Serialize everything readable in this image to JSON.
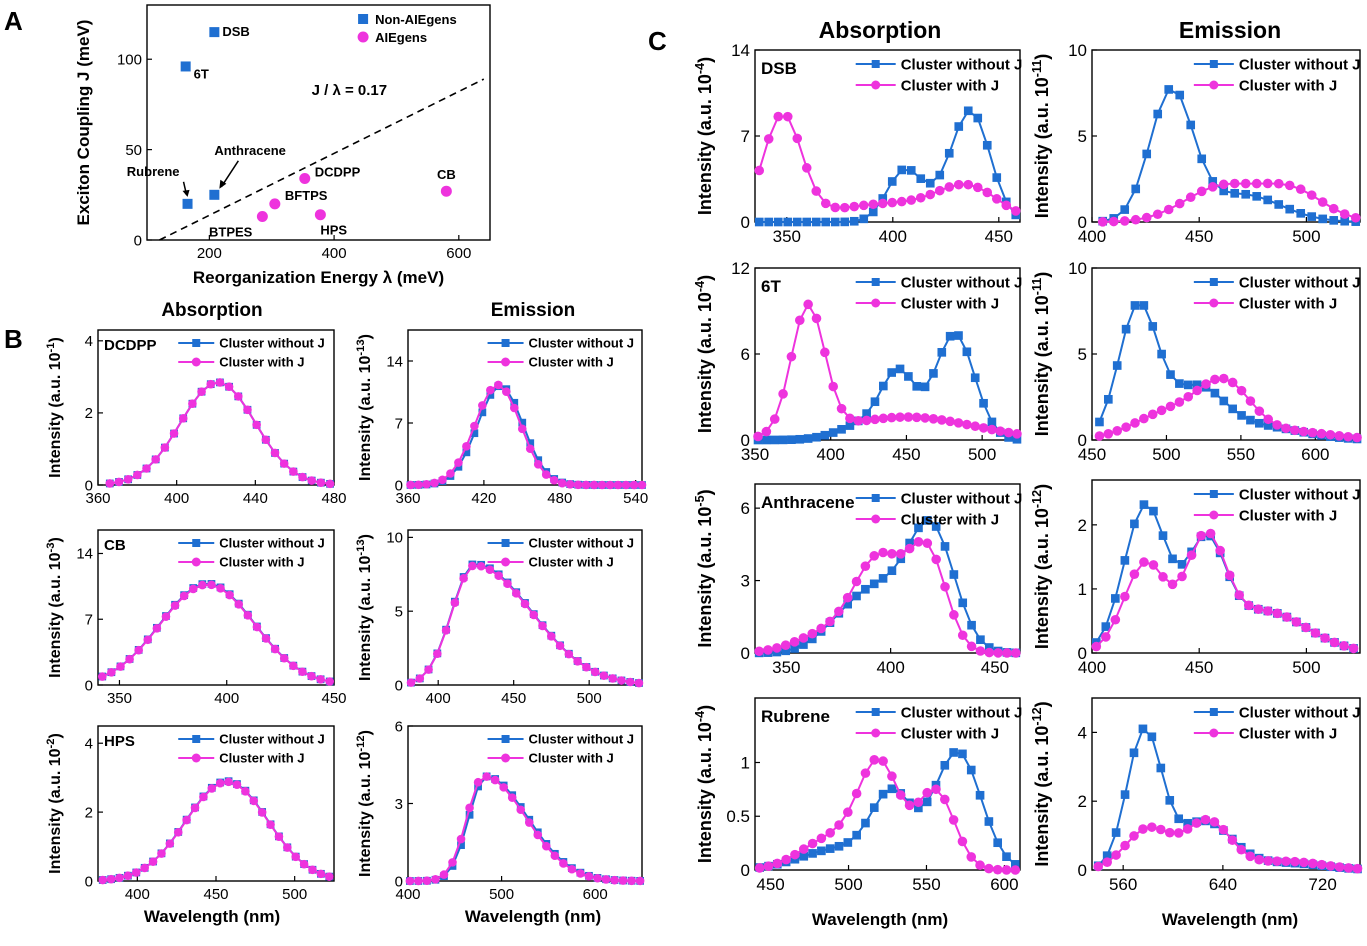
{
  "colors": {
    "without": "#1f6fd1",
    "with": "#ee33dd",
    "axis": "#000000"
  },
  "panel_letters": [
    "A",
    "B",
    "C"
  ],
  "section_titles": {
    "absorption": "Absorption",
    "emission": "Emission"
  },
  "wavelength_label": "Wavelength (nm)",
  "legend": {
    "without": "Cluster without J",
    "with": "Cluster with J"
  },
  "panel_a": {
    "xlabel": "Reorganization Energy λ (meV)",
    "ylabel": "Exciton Coupling J (meV)",
    "legend": [
      "Non-AIEgens",
      "AIEgens"
    ],
    "ratio_label": "J / λ = 0.17"
  },
  "chart_data": [
    {
      "id": "A",
      "type": "scatter",
      "xlim": [
        100,
        650
      ],
      "ylim": [
        0,
        130
      ],
      "xticks": [
        200,
        400,
        600
      ],
      "yticks": [
        0,
        50,
        100
      ],
      "series": [
        {
          "name": "Non-AIEgens",
          "marker": "square",
          "color": "#1f6fd1",
          "points": [
            {
              "x": 208,
              "y": 115,
              "label": "DSB"
            },
            {
              "x": 162,
              "y": 96,
              "label": "6T"
            },
            {
              "x": 208,
              "y": 25,
              "label": "Anthracene"
            },
            {
              "x": 165,
              "y": 20,
              "label": "Rubrene"
            }
          ]
        },
        {
          "name": "AIEgens",
          "marker": "circle",
          "color": "#ee33dd",
          "points": [
            {
              "x": 353,
              "y": 34,
              "label": "DCDPP"
            },
            {
              "x": 580,
              "y": 27,
              "label": "CB"
            },
            {
              "x": 305,
              "y": 20,
              "label": "BFTPS"
            },
            {
              "x": 285,
              "y": 13,
              "label": "BTPES"
            },
            {
              "x": 378,
              "y": 14,
              "label": "HPS"
            }
          ]
        }
      ],
      "line": {
        "x": [
          120,
          640
        ],
        "y": [
          0,
          89
        ],
        "style": "dashed"
      }
    },
    {
      "id": "B-DCDPP-abs",
      "type": "line",
      "label": "DCDPP",
      "unit": "Intensity (a.u. 10",
      "exp": "-1",
      "xlim": [
        360,
        480
      ],
      "ylim": [
        0,
        4.3
      ],
      "xticks": [
        360,
        400,
        440,
        480
      ],
      "yticks": [
        0,
        2,
        4
      ],
      "peaks_without": [
        [
          421,
          2.85,
          19
        ]
      ],
      "peaks_with": [
        [
          421,
          2.85,
          19
        ]
      ],
      "pts": [
        366,
        478,
        25
      ]
    },
    {
      "id": "B-DCDPP-em",
      "type": "line",
      "unit": "Intensity (a.u. 10",
      "exp": "-13",
      "xlim": [
        360,
        545
      ],
      "ylim": [
        0,
        17.5
      ],
      "xticks": [
        360,
        420,
        480,
        540
      ],
      "yticks": [
        0,
        7,
        14
      ],
      "peaks_without": [
        [
          433,
          11.2,
          18
        ]
      ],
      "peaks_with": [
        [
          431,
          11.3,
          18
        ]
      ],
      "pts": [
        362,
        545,
        30
      ]
    },
    {
      "id": "B-CB-abs",
      "type": "line",
      "label": "CB",
      "unit": "Intensity (a.u. 10",
      "exp": "-3",
      "xlim": [
        340,
        450
      ],
      "ylim": [
        0,
        16.5
      ],
      "xticks": [
        350,
        400,
        450
      ],
      "yticks": [
        0,
        7,
        14
      ],
      "peaks_without": [
        [
          391,
          10.8,
          22
        ]
      ],
      "peaks_with": [
        [
          391,
          10.7,
          22
        ]
      ],
      "pts": [
        342,
        448,
        26
      ]
    },
    {
      "id": "B-CB-em",
      "type": "line",
      "unit": "Intensity (a.u. 10",
      "exp": "-13",
      "xlim": [
        380,
        535
      ],
      "ylim": [
        0,
        10.5
      ],
      "xticks": [
        400,
        450,
        500
      ],
      "yticks": [
        0,
        5,
        10
      ],
      "peaks_without": [
        [
          424,
          8.2,
          15,
          38
        ]
      ],
      "peaks_with": [
        [
          424,
          8.1,
          15,
          38
        ]
      ],
      "pts": [
        382,
        533,
        27
      ]
    },
    {
      "id": "B-HPS-abs",
      "type": "line",
      "label": "HPS",
      "unit": "Intensity (a.u. 10",
      "exp": "-2",
      "xlim": [
        375,
        525
      ],
      "ylim": [
        0,
        4.5
      ],
      "xticks": [
        400,
        450,
        500
      ],
      "yticks": [
        0,
        2,
        4
      ],
      "peaks_without": [
        [
          457,
          2.9,
          26
        ]
      ],
      "peaks_with": [
        [
          457,
          2.88,
          26
        ]
      ],
      "pts": [
        378,
        522,
        28
      ]
    },
    {
      "id": "B-HPS-em",
      "type": "line",
      "unit": "Intensity (a.u. 10",
      "exp": "-12",
      "xlim": [
        400,
        650
      ],
      "ylim": [
        0,
        6
      ],
      "xticks": [
        400,
        500,
        600
      ],
      "yticks": [
        0,
        3,
        6
      ],
      "peaks_without": [
        [
          483,
          4.05,
          18,
          45
        ]
      ],
      "peaks_with": [
        [
          481,
          4.05,
          18,
          45
        ]
      ],
      "pts": [
        402,
        648,
        28
      ]
    },
    {
      "id": "C-DSB-abs",
      "type": "line",
      "label": "DSB",
      "unit": "Intensity (a.u. 10",
      "exp": "-4",
      "xlim": [
        335,
        460
      ],
      "ylim": [
        0,
        14
      ],
      "xticks": [
        350,
        400,
        450
      ],
      "yticks": [
        0,
        7,
        14
      ],
      "peaks_without": [
        [
          405,
          3.9,
          8
        ],
        [
          437,
          8.8,
          9
        ],
        [
          420,
          1.2,
          10
        ]
      ],
      "peaks_with": [
        [
          348,
          8.5,
          9
        ],
        [
          400,
          1.5,
          30
        ],
        [
          436,
          2.3,
          14
        ]
      ],
      "pts": [
        337,
        458,
        28
      ]
    },
    {
      "id": "C-DSB-em",
      "type": "line",
      "unit": "Intensity (a.u. 10",
      "exp": "-11",
      "xlim": [
        400,
        525
      ],
      "ylim": [
        0,
        10
      ],
      "xticks": [
        400,
        450,
        500
      ],
      "yticks": [
        0,
        5,
        10
      ],
      "peaks_without": [
        [
          437,
          7.5,
          10
        ],
        [
          470,
          1.6,
          18
        ]
      ],
      "peaks_with": [
        [
          460,
          2.0,
          17
        ],
        [
          493,
          1.8,
          15
        ]
      ],
      "pts": [
        405,
        523,
        24
      ]
    },
    {
      "id": "C-6T-abs",
      "type": "line",
      "label": "6T",
      "unit": "Intensity (a.u. 10",
      "exp": "-4",
      "xlim": [
        350,
        525
      ],
      "ylim": [
        0,
        12
      ],
      "xticks": [
        350,
        400,
        450,
        500
      ],
      "yticks": [
        0,
        6,
        12
      ],
      "peaks_without": [
        [
          445,
          4.2,
          11
        ],
        [
          482,
          7.4,
          13
        ],
        [
          425,
          1.2,
          18
        ]
      ],
      "peaks_with": [
        [
          385,
          8.9,
          11
        ],
        [
          450,
          1.6,
          45
        ]
      ],
      "pts": [
        352,
        523,
        32
      ]
    },
    {
      "id": "C-6T-em",
      "type": "line",
      "unit": "Intensity (a.u. 10",
      "exp": "-11",
      "xlim": [
        450,
        630
      ],
      "ylim": [
        0,
        10
      ],
      "xticks": [
        450,
        500,
        550,
        600
      ],
      "yticks": [
        0,
        5,
        10
      ],
      "peaks_without": [
        [
          481,
          7.7,
          13
        ],
        [
          520,
          2.8,
          18
        ],
        [
          560,
          0.8,
          30
        ]
      ],
      "peaks_with": [
        [
          505,
          1.7,
          25
        ],
        [
          540,
          2.7,
          17
        ],
        [
          580,
          0.5,
          30
        ]
      ],
      "pts": [
        455,
        628,
        30
      ]
    },
    {
      "id": "C-Anth-abs",
      "type": "line",
      "label": "Anthracene",
      "unit": "Intensity (a.u. 10",
      "exp": "-5",
      "xlim": [
        335,
        462
      ],
      "ylim": [
        0,
        7
      ],
      "xticks": [
        350,
        400,
        450
      ],
      "yticks": [
        0,
        3,
        6
      ],
      "peaks_without": [
        [
          420,
          4.8,
          11
        ],
        [
          395,
          2.5,
          15
        ],
        [
          375,
          0.6,
          12
        ]
      ],
      "peaks_with": [
        [
          395,
          3.8,
          12
        ],
        [
          418,
          3.9,
          9
        ],
        [
          370,
          0.8,
          15
        ]
      ],
      "pts": [
        337,
        460,
        30
      ]
    },
    {
      "id": "C-Anth-em",
      "type": "line",
      "unit": "Intensity (a.u. 10",
      "exp": "-12",
      "xlim": [
        400,
        525
      ],
      "ylim": [
        0,
        2.7
      ],
      "xticks": [
        400,
        450,
        500
      ],
      "yticks": [
        0,
        1,
        2
      ],
      "peaks_without": [
        [
          425,
          2.3,
          10
        ],
        [
          453,
          1.55,
          9
        ],
        [
          480,
          0.65,
          20
        ]
      ],
      "peaks_with": [
        [
          425,
          1.4,
          10
        ],
        [
          453,
          1.6,
          9
        ],
        [
          480,
          0.65,
          20
        ]
      ],
      "pts": [
        402,
        522,
        28
      ]
    },
    {
      "id": "C-Rub-abs",
      "type": "line",
      "label": "Rubrene",
      "unit": "Intensity (a.u. 10",
      "exp": "-4",
      "xlim": [
        440,
        610
      ],
      "ylim": [
        0,
        1.6
      ],
      "xticks": [
        450,
        500,
        550,
        600
      ],
      "yticks": [
        0,
        0.5,
        1
      ],
      "peaks_without": [
        [
          528,
          0.65,
          13
        ],
        [
          570,
          1.1,
          15
        ],
        [
          495,
          0.2,
          25
        ]
      ],
      "peaks_with": [
        [
          520,
          0.93,
          13
        ],
        [
          556,
          0.73,
          12
        ],
        [
          490,
          0.3,
          20
        ]
      ],
      "pts": [
        443,
        607,
        30
      ]
    },
    {
      "id": "C-Rub-em",
      "type": "line",
      "unit": "Intensity (a.u. 10",
      "exp": "-12",
      "xlim": [
        535,
        750
      ],
      "ylim": [
        0,
        5
      ],
      "xticks": [
        560,
        640,
        720
      ],
      "yticks": [
        0,
        2,
        4
      ],
      "peaks_without": [
        [
          577,
          4.0,
          14
        ],
        [
          625,
          1.4,
          22
        ],
        [
          690,
          0.2,
          30
        ]
      ],
      "peaks_with": [
        [
          580,
          1.2,
          18
        ],
        [
          628,
          1.4,
          18
        ],
        [
          690,
          0.25,
          30
        ]
      ],
      "pts": [
        540,
        748,
        30
      ]
    }
  ]
}
